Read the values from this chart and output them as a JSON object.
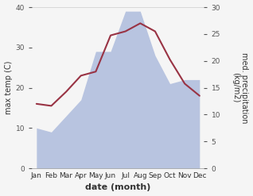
{
  "months": [
    "Jan",
    "Feb",
    "Mar",
    "Apr",
    "May",
    "Jun",
    "Jul",
    "Aug",
    "Sep",
    "Oct",
    "Nov",
    "Dec"
  ],
  "temperature": [
    16,
    15.5,
    19,
    23,
    24,
    33,
    34,
    36,
    34,
    27,
    21,
    18
  ],
  "precipitation": [
    10,
    9,
    13,
    17,
    29,
    29,
    39,
    39,
    28,
    21,
    22,
    22
  ],
  "temp_color": "#993344",
  "precip_color": "#b8c4e0",
  "ylabel_left": "max temp (C)",
  "ylabel_right": "med. precipitation\n(kg/m2)",
  "xlabel": "date (month)",
  "ylim_left": [
    0,
    40
  ],
  "ylim_right": [
    0,
    30
  ],
  "bg_color": "#f5f5f5",
  "plot_bg_color": "#f5f5f5",
  "tick_label_fontsize": 6.5,
  "axis_label_fontsize": 7
}
